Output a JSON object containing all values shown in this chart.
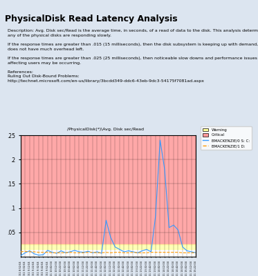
{
  "title": "/PhysicalDisk(*)\\Avg. Disk sec/Read",
  "page_title": "PhysicalDisk Read Latency Analysis",
  "description_lines": [
    "Description: Avg. Disk sec/Read is the average time, in seconds, of a read of data to the disk. This analysis determines if",
    "any of the physical disks are responding slowly.",
    "",
    "If the response times are greater than .015 (15 milliseconds), then the disk subsystem is keeping up with demand, but",
    "does not have much overhead left.",
    "",
    "If the response times are greater than .025 (25 milliseconds), then noticeable slow downs and performance issues",
    "affecting users may be occurring.",
    "",
    "References:",
    "Ruling Out Disk-Bound Problems:",
    "http://technet.microsoft.com/en-us/library/3bcdd349-ddc6-43eb-9dc3-54175f7081ad.aspx"
  ],
  "warning_level": 0.015,
  "critical_level": 0.025,
  "y_max": 0.25,
  "y_ticks": [
    0.05,
    0.1,
    0.15,
    0.2,
    0.25
  ],
  "y_tick_labels": [
    ".05",
    ".1",
    ".15",
    ".2",
    ".25"
  ],
  "warning_color": "#ffffcc",
  "critical_color": "#ff6666",
  "critical_fill_color": "#ff9999",
  "line1_color": "#3399ff",
  "line2_color": "#ff9900",
  "legend_entries": [
    "Warning",
    "Critical",
    "BMACKENZIE/0 S: C:",
    "BMACKENZIE/1 D:"
  ],
  "background_color": "#ffffff",
  "browser_bg": "#dce5f0",
  "n_points": 40,
  "blue_line_data": [
    0.002,
    0.008,
    0.012,
    0.006,
    0.003,
    0.004,
    0.013,
    0.009,
    0.007,
    0.012,
    0.008,
    0.01,
    0.013,
    0.01,
    0.009,
    0.011,
    0.008,
    0.01,
    0.007,
    0.075,
    0.04,
    0.02,
    0.015,
    0.01,
    0.012,
    0.01,
    0.008,
    0.012,
    0.015,
    0.01,
    0.085,
    0.24,
    0.18,
    0.06,
    0.065,
    0.055,
    0.02,
    0.012,
    0.01,
    0.008
  ],
  "orange_line_data": [
    0.01,
    0.011,
    0.01,
    0.01,
    0.009,
    0.009,
    0.009,
    0.008,
    0.008,
    0.008,
    0.008,
    0.009,
    0.008,
    0.008,
    0.008,
    0.009,
    0.009,
    0.008,
    0.008,
    0.009,
    0.008,
    0.009,
    0.009,
    0.008,
    0.008,
    0.009,
    0.008,
    0.008,
    0.008,
    0.009,
    0.009,
    0.009,
    0.009,
    0.009,
    0.009,
    0.009,
    0.008,
    0.008,
    0.008,
    0.008
  ],
  "x_tick_labels": [
    "2/20/2011 8:52:04",
    "2/20/2011 9:02:04",
    "2/20/2011 9:12:04",
    "2/20/2011 9:22:04",
    "2/20/2011 9:32:04",
    "2/20/2011 9:42:04",
    "2/20/2011 9:52:04",
    "2/20/2011 10:02:04",
    "2/20/2011 10:12:04",
    "2/20/2011 10:22:04",
    "2/20/2011 10:32:04",
    "2/20/2011 10:42:04",
    "2/20/2011 10:52:04",
    "2/20/2011 11:02:04",
    "2/20/2011 11:12:04",
    "2/20/2011 11:22:04",
    "2/20/2011 11:32:04",
    "2/20/2011 11:42:04",
    "2/20/2011 11:52:04",
    "2/20/2011 12:02:04",
    "2/20/2011 12:12:04",
    "2/20/2011 12:22:04",
    "2/20/2011 12:32:04",
    "2/20/2011 12:42:04",
    "2/20/2011 12:52:04",
    "2/20/2011 13:02:04",
    "2/20/2011 13:12:04",
    "2/20/2011 13:22:04",
    "2/20/2011 13:32:04",
    "2/20/2011 13:42:04",
    "2/20/2011 13:52:04",
    "2/20/2011 14:02:04",
    "2/20/2011 14:12:04",
    "2/20/2011 14:22:04",
    "2/20/2011 14:32:04",
    "2/20/2011 14:42:04",
    "2/20/2011 14:52:04",
    "2/20/2011 15:02:04",
    "2/20/2011 15:12:04",
    "2/20/2011 15:22:04"
  ]
}
